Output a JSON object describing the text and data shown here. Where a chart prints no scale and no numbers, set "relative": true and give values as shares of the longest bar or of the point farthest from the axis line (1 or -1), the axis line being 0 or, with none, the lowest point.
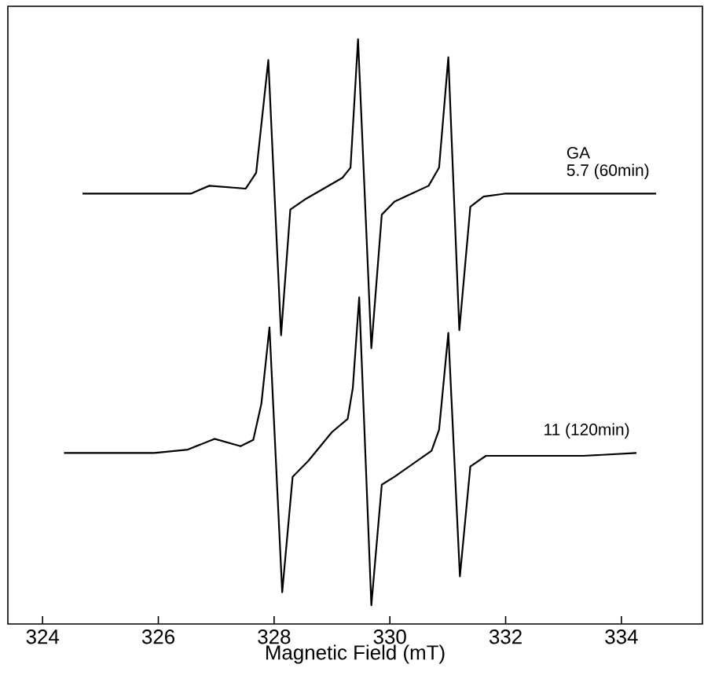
{
  "chart_data": {
    "type": "line",
    "xlabel": "Magnetic Field (mT)",
    "relative": true,
    "xlim": [
      323.4,
      335.4
    ],
    "xticks": [
      324,
      326,
      328,
      330,
      332,
      334
    ],
    "annotations": [
      "GA"
    ],
    "marker": "none",
    "line_style": "solid",
    "grid": false,
    "series": [
      {
        "name": "5.7 (60min)",
        "color": "#000000",
        "x": [
          324.69,
          326.56,
          326.88,
          327.51,
          327.69,
          327.9,
          328.12,
          328.28,
          328.55,
          329.18,
          329.32,
          329.45,
          329.68,
          329.86,
          330.08,
          330.67,
          330.85,
          331.01,
          331.2,
          331.39,
          331.62,
          331.98,
          334.6
        ],
        "values": [
          0.727,
          0.727,
          0.741,
          0.736,
          0.764,
          0.963,
          0.477,
          0.699,
          0.718,
          0.755,
          0.773,
          1.0,
          0.454,
          0.69,
          0.713,
          0.741,
          0.773,
          0.968,
          0.486,
          0.704,
          0.722,
          0.727,
          0.727
        ]
      },
      {
        "name": "11 (120min)",
        "color": "#000000",
        "x": [
          324.37,
          325.93,
          326.51,
          326.97,
          327.42,
          327.64,
          327.78,
          327.92,
          328.14,
          328.32,
          328.59,
          329.0,
          329.27,
          329.36,
          329.47,
          329.68,
          329.86,
          330.08,
          330.72,
          330.85,
          331.01,
          331.21,
          331.39,
          331.66,
          332.34,
          333.34,
          334.26
        ],
        "values": [
          0.269,
          0.269,
          0.275,
          0.294,
          0.281,
          0.292,
          0.356,
          0.491,
          0.023,
          0.227,
          0.255,
          0.306,
          0.329,
          0.384,
          0.544,
          0.0,
          0.213,
          0.227,
          0.273,
          0.31,
          0.481,
          0.051,
          0.245,
          0.264,
          0.264,
          0.264,
          0.269
        ]
      }
    ]
  }
}
